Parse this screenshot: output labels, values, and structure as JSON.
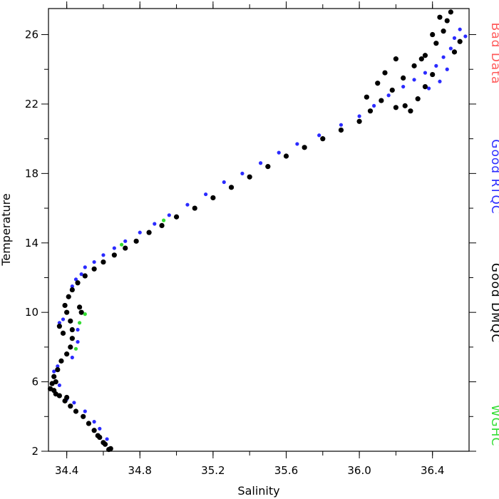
{
  "chart_data": {
    "type": "scatter",
    "xlabel": "Salinity",
    "ylabel": "Temperature",
    "xlim": [
      34.3,
      36.6
    ],
    "ylim": [
      2,
      27.5
    ],
    "x_ticks": [
      34.4,
      34.8,
      35.2,
      35.6,
      36.0,
      36.4
    ],
    "x_tick_labels": [
      "34.4",
      "34.8",
      "35.2",
      "35.6",
      "36.0",
      "36.4"
    ],
    "y_ticks": [
      2,
      6,
      10,
      14,
      18,
      22,
      26
    ],
    "y_tick_labels": [
      "2",
      "6",
      "10",
      "14",
      "18",
      "22",
      "26"
    ],
    "grid": false,
    "legend_position": "right-vertical",
    "series": [
      {
        "name": "Bad Data",
        "color": "#ff5a5a",
        "points": []
      },
      {
        "name": "Good RTQC",
        "color": "#2b2bff",
        "points": [
          [
            34.36,
            9.4
          ],
          [
            34.38,
            9.6
          ],
          [
            34.41,
            10.9
          ],
          [
            34.43,
            11.5
          ],
          [
            34.45,
            11.9
          ],
          [
            34.48,
            12.2
          ],
          [
            34.5,
            12.6
          ],
          [
            34.55,
            12.9
          ],
          [
            34.6,
            13.3
          ],
          [
            34.66,
            13.7
          ],
          [
            34.72,
            14.1
          ],
          [
            34.8,
            14.6
          ],
          [
            34.88,
            15.1
          ],
          [
            34.96,
            15.6
          ],
          [
            35.06,
            16.2
          ],
          [
            35.16,
            16.8
          ],
          [
            35.26,
            17.5
          ],
          [
            35.36,
            18.0
          ],
          [
            35.46,
            18.6
          ],
          [
            35.56,
            19.2
          ],
          [
            35.66,
            19.7
          ],
          [
            35.78,
            20.2
          ],
          [
            35.9,
            20.8
          ],
          [
            36.0,
            21.3
          ],
          [
            36.08,
            21.9
          ],
          [
            36.16,
            22.5
          ],
          [
            36.24,
            23.0
          ],
          [
            36.3,
            23.4
          ],
          [
            36.36,
            23.8
          ],
          [
            36.42,
            24.2
          ],
          [
            36.46,
            24.7
          ],
          [
            36.5,
            25.2
          ],
          [
            36.52,
            25.8
          ],
          [
            36.55,
            26.3
          ],
          [
            36.58,
            25.9
          ],
          [
            36.44,
            23.3
          ],
          [
            36.48,
            24.0
          ],
          [
            36.38,
            22.9
          ],
          [
            34.33,
            6.6
          ],
          [
            34.35,
            6.9
          ],
          [
            34.36,
            5.8
          ],
          [
            34.4,
            5.0
          ],
          [
            34.44,
            4.8
          ],
          [
            34.5,
            4.3
          ],
          [
            34.55,
            3.7
          ],
          [
            34.58,
            3.3
          ],
          [
            34.62,
            2.7
          ],
          [
            34.46,
            8.3
          ],
          [
            34.46,
            9.0
          ],
          [
            34.43,
            7.4
          ]
        ]
      },
      {
        "name": "Good DMQC",
        "color": "#000000",
        "points": [
          [
            34.63,
            2.1
          ],
          [
            34.61,
            2.4
          ],
          [
            34.58,
            2.8
          ],
          [
            34.55,
            3.2
          ],
          [
            34.52,
            3.6
          ],
          [
            34.49,
            4.0
          ],
          [
            34.45,
            4.3
          ],
          [
            34.42,
            4.6
          ],
          [
            34.39,
            4.9
          ],
          [
            34.36,
            5.2
          ],
          [
            34.33,
            5.5
          ],
          [
            34.32,
            5.9
          ],
          [
            34.33,
            6.3
          ],
          [
            34.35,
            6.7
          ],
          [
            34.37,
            7.2
          ],
          [
            34.4,
            7.6
          ],
          [
            34.42,
            8.0
          ],
          [
            34.43,
            8.5
          ],
          [
            34.43,
            9.0
          ],
          [
            34.42,
            9.5
          ],
          [
            34.4,
            10.0
          ],
          [
            34.39,
            10.4
          ],
          [
            34.41,
            10.9
          ],
          [
            34.43,
            11.3
          ],
          [
            34.46,
            11.7
          ],
          [
            34.5,
            12.1
          ],
          [
            34.55,
            12.5
          ],
          [
            34.6,
            12.9
          ],
          [
            34.66,
            13.3
          ],
          [
            34.72,
            13.7
          ],
          [
            34.78,
            14.1
          ],
          [
            34.85,
            14.6
          ],
          [
            34.92,
            15.0
          ],
          [
            35.0,
            15.5
          ],
          [
            35.1,
            16.0
          ],
          [
            35.2,
            16.6
          ],
          [
            35.3,
            17.2
          ],
          [
            35.4,
            17.8
          ],
          [
            35.5,
            18.4
          ],
          [
            35.6,
            19.0
          ],
          [
            35.7,
            19.5
          ],
          [
            35.8,
            20.0
          ],
          [
            35.9,
            20.5
          ],
          [
            36.0,
            21.0
          ],
          [
            36.06,
            21.6
          ],
          [
            36.12,
            22.2
          ],
          [
            36.18,
            22.8
          ],
          [
            36.24,
            23.5
          ],
          [
            36.3,
            24.2
          ],
          [
            36.36,
            24.8
          ],
          [
            36.42,
            25.5
          ],
          [
            36.46,
            26.2
          ],
          [
            36.48,
            26.8
          ],
          [
            36.5,
            27.3
          ],
          [
            36.44,
            27.0
          ],
          [
            36.4,
            26.0
          ],
          [
            36.34,
            24.6
          ],
          [
            36.2,
            24.6
          ],
          [
            36.14,
            23.8
          ],
          [
            36.1,
            23.2
          ],
          [
            36.04,
            22.4
          ],
          [
            36.25,
            21.9
          ],
          [
            36.32,
            22.3
          ],
          [
            36.36,
            23.0
          ],
          [
            36.4,
            23.7
          ],
          [
            36.28,
            21.6
          ],
          [
            36.2,
            21.8
          ],
          [
            36.52,
            25.0
          ],
          [
            36.55,
            25.6
          ],
          [
            34.47,
            10.3
          ],
          [
            34.48,
            10.0
          ],
          [
            34.36,
            9.2
          ],
          [
            34.38,
            8.8
          ],
          [
            34.34,
            6.0
          ],
          [
            34.31,
            5.6
          ],
          [
            34.34,
            5.3
          ],
          [
            34.4,
            5.1
          ],
          [
            34.57,
            2.9
          ],
          [
            34.6,
            2.5
          ],
          [
            34.64,
            2.15
          ]
        ]
      },
      {
        "name": "WGHC",
        "color": "#33dd33",
        "points": [
          [
            34.45,
            7.9
          ],
          [
            34.47,
            9.4
          ],
          [
            34.5,
            9.9
          ],
          [
            34.7,
            13.9
          ],
          [
            34.93,
            15.3
          ]
        ]
      }
    ]
  }
}
